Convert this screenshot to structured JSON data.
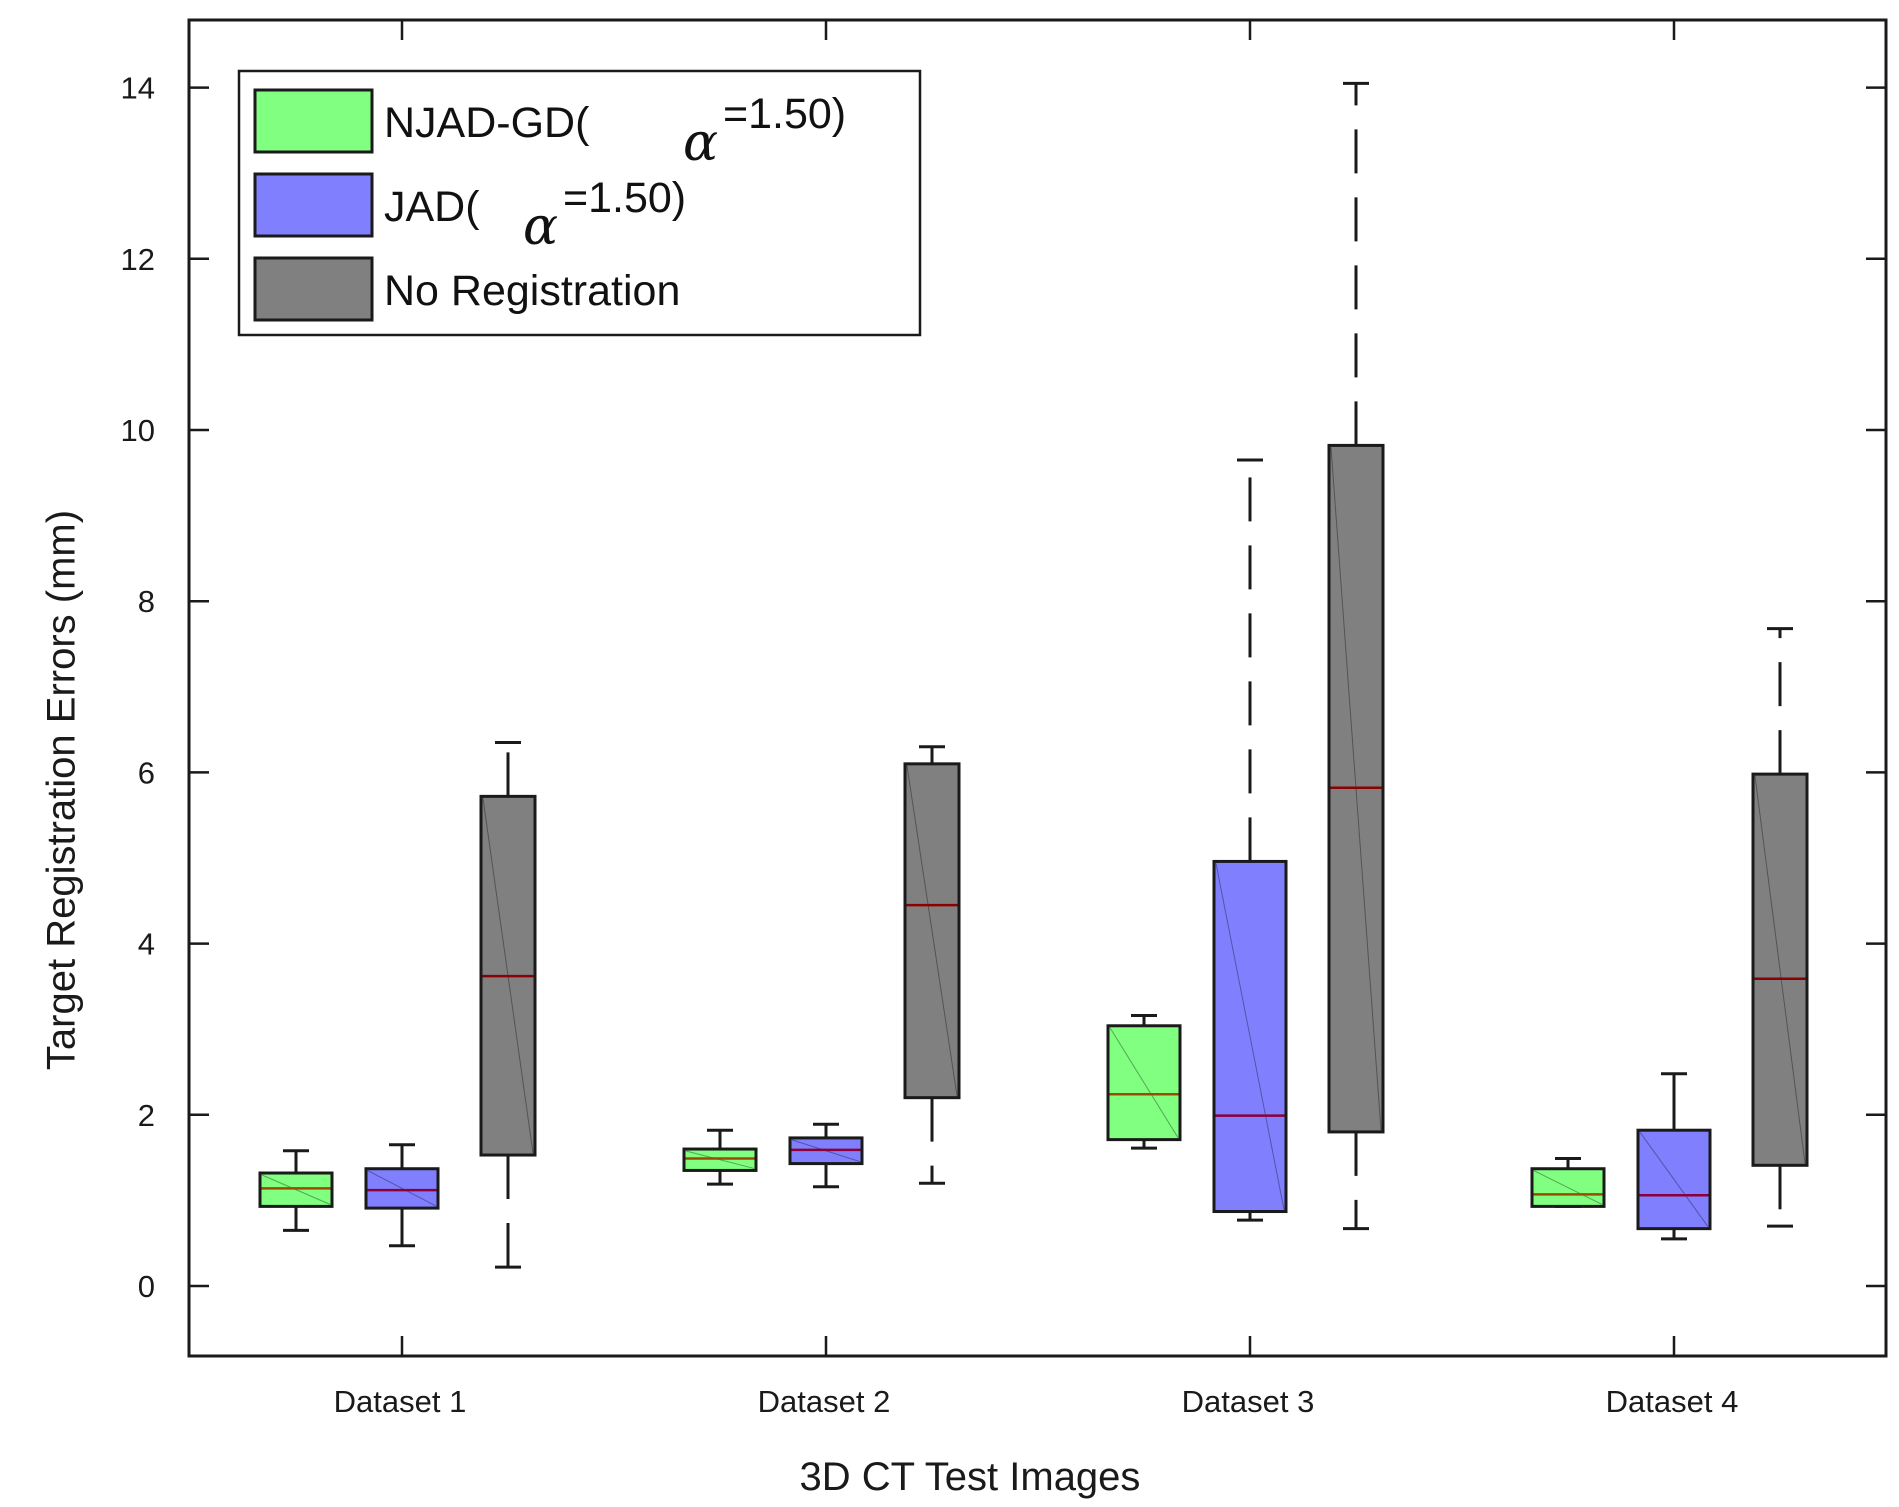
{
  "chart_data": {
    "type": "boxplot",
    "xlabel": "3D CT Test Images",
    "ylabel": "Target Registration Errors (mm)",
    "ylim": [
      -0.85,
      14.8
    ],
    "yticks": [
      0,
      2,
      4,
      6,
      8,
      10,
      12,
      14
    ],
    "categories": [
      "Dataset 1",
      "Dataset 2",
      "Dataset 3",
      "Dataset 4"
    ],
    "legend": {
      "position": "top-left",
      "symbol": "α",
      "items": [
        {
          "label": "NJAD-GD(",
          "param": "=1.50)",
          "has_symbol": true
        },
        {
          "label": "JAD(",
          "param": "=1.50)",
          "has_symbol": true
        },
        {
          "label": "No Registration",
          "param": "",
          "has_symbol": false
        }
      ]
    },
    "series": [
      {
        "name": "NJAD-GD(α=1.50)",
        "color": "#80ff80",
        "median_color": "#a04a00",
        "boxes": [
          {
            "min": 0.65,
            "q1": 0.93,
            "median": 1.14,
            "q3": 1.32,
            "max": 1.58
          },
          {
            "min": 1.19,
            "q1": 1.35,
            "median": 1.49,
            "q3": 1.6,
            "max": 1.82
          },
          {
            "min": 1.61,
            "q1": 1.71,
            "median": 2.24,
            "q3": 3.04,
            "max": 3.16
          },
          {
            "min": 0.93,
            "q1": 0.93,
            "median": 1.07,
            "q3": 1.37,
            "max": 1.49
          }
        ]
      },
      {
        "name": "JAD(α=1.50)",
        "color": "#8080ff",
        "median_color": "#8b0038",
        "boxes": [
          {
            "min": 0.47,
            "q1": 0.91,
            "median": 1.12,
            "q3": 1.37,
            "max": 1.65
          },
          {
            "min": 1.16,
            "q1": 1.43,
            "median": 1.59,
            "q3": 1.73,
            "max": 1.89
          },
          {
            "min": 0.77,
            "q1": 0.87,
            "median": 1.99,
            "q3": 4.96,
            "max": 9.65
          },
          {
            "min": 0.55,
            "q1": 0.67,
            "median": 1.06,
            "q3": 1.82,
            "max": 2.48
          }
        ]
      },
      {
        "name": "No Registration",
        "color": "#808080",
        "median_color": "#8b0000",
        "boxes": [
          {
            "min": 0.22,
            "q1": 1.53,
            "median": 3.62,
            "q3": 5.72,
            "max": 6.35
          },
          {
            "min": 1.2,
            "q1": 2.2,
            "median": 4.45,
            "q3": 6.1,
            "max": 6.3
          },
          {
            "min": 0.67,
            "q1": 1.8,
            "median": 5.82,
            "q3": 9.82,
            "max": 14.05
          },
          {
            "min": 0.7,
            "q1": 1.41,
            "median": 3.59,
            "q3": 5.98,
            "max": 7.68
          }
        ]
      }
    ]
  }
}
